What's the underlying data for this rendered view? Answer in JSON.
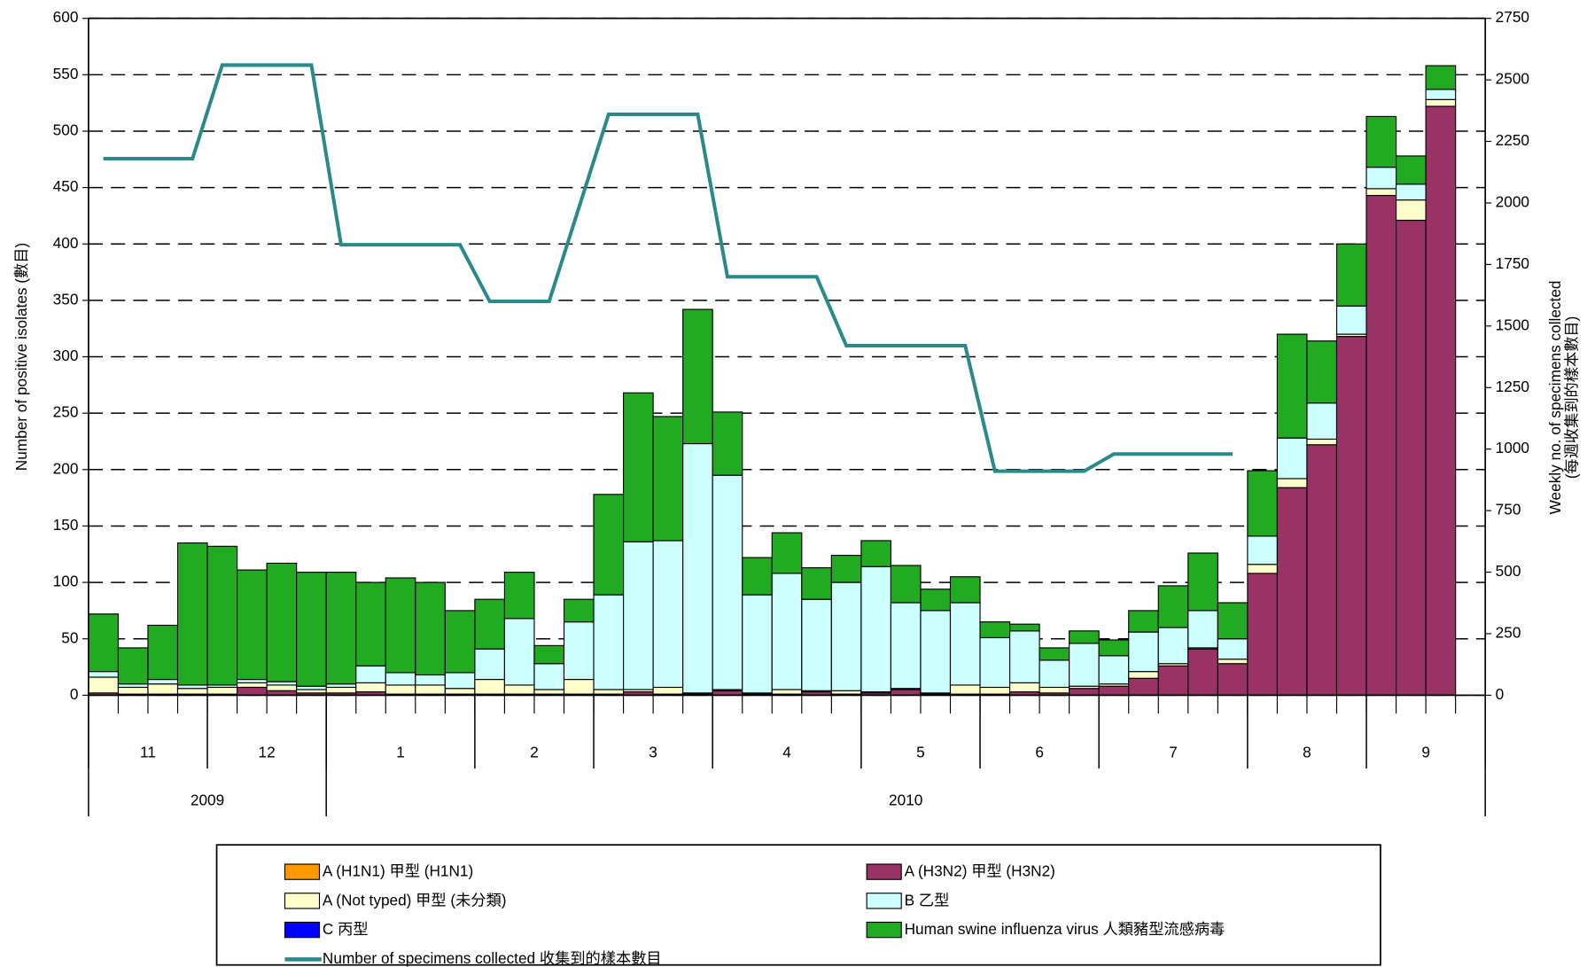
{
  "chart_data": {
    "type": "bar",
    "ylabel": "Number of positive isolates (數目)",
    "y2label": [
      "Weekly no. of specimens collected",
      "(每週收集到的樣本數目)"
    ],
    "ylim": [
      0,
      600
    ],
    "yticks": [
      0,
      50,
      100,
      150,
      200,
      250,
      300,
      350,
      400,
      450,
      500,
      550,
      600
    ],
    "y2lim": [
      0,
      2750
    ],
    "y2ticks": [
      0,
      250,
      500,
      750,
      1000,
      1250,
      1500,
      1750,
      2000,
      2250,
      2500,
      2750
    ],
    "grid": true,
    "months": [
      "11",
      "11",
      "11",
      "11",
      "12",
      "12",
      "12",
      "12",
      "1",
      "1",
      "1",
      "1",
      "1",
      "2",
      "2",
      "2",
      "2",
      "3",
      "3",
      "3",
      "3",
      "4",
      "4",
      "4",
      "4",
      "4",
      "5",
      "5",
      "5",
      "5",
      "6",
      "6",
      "6",
      "6",
      "7",
      "7",
      "7",
      "7",
      "7",
      "8",
      "8",
      "8",
      "8",
      "9",
      "9",
      "9",
      "9"
    ],
    "years": [
      "2009",
      "2009",
      "2009",
      "2009",
      "2009",
      "2009",
      "2009",
      "2009",
      "2010",
      "2010",
      "2010",
      "2010",
      "2010",
      "2010",
      "2010",
      "2010",
      "2010",
      "2010",
      "2010",
      "2010",
      "2010",
      "2010",
      "2010",
      "2010",
      "2010",
      "2010",
      "2010",
      "2010",
      "2010",
      "2010",
      "2010",
      "2010",
      "2010",
      "2010",
      "2010",
      "2010",
      "2010",
      "2010",
      "2010",
      "2010",
      "2010",
      "2010",
      "2010",
      "2010",
      "2010",
      "2010",
      "2010"
    ],
    "series": [
      {
        "name": "A (H1N1) 甲型 (H1N1)",
        "color": "#ff9900",
        "values": [
          0,
          0,
          0,
          0,
          0,
          0,
          0,
          0,
          0,
          0,
          0,
          0,
          0,
          0,
          0,
          0,
          0,
          0,
          0,
          0,
          0,
          0,
          0,
          0,
          0,
          0,
          0,
          0,
          0,
          0,
          0,
          0,
          0,
          0,
          0,
          0,
          0,
          0,
          0,
          0,
          0,
          0,
          0,
          0,
          0,
          0,
          null
        ]
      },
      {
        "name": "A (H3N2) 甲型 (H3N2)",
        "color": "#993366",
        "values": [
          2,
          1,
          1,
          1,
          1,
          7,
          4,
          2,
          2,
          3,
          1,
          1,
          1,
          1,
          1,
          1,
          1,
          1,
          3,
          1,
          1,
          4,
          1,
          1,
          3,
          1,
          2,
          5,
          1,
          1,
          1,
          3,
          2,
          6,
          8,
          15,
          26,
          41,
          28,
          108,
          184,
          222,
          318,
          443,
          421,
          522,
          null
        ]
      },
      {
        "name": "A (Not typed) 甲型 (未分類)",
        "color": "#ffffcc",
        "values": [
          14,
          6,
          9,
          5,
          6,
          4,
          5,
          3,
          5,
          8,
          8,
          8,
          5,
          13,
          8,
          4,
          13,
          4,
          2,
          6,
          1,
          1,
          1,
          4,
          1,
          3,
          1,
          1,
          1,
          8,
          6,
          8,
          5,
          2,
          2,
          6,
          2,
          1,
          4,
          8,
          8,
          5,
          2,
          6,
          18,
          6,
          null
        ]
      },
      {
        "name": "B 乙型",
        "color": "#ccffff",
        "values": [
          5,
          3,
          4,
          3,
          2,
          3,
          3,
          3,
          3,
          15,
          11,
          9,
          14,
          27,
          59,
          23,
          51,
          84,
          131,
          130,
          221,
          190,
          87,
          103,
          81,
          96,
          111,
          76,
          73,
          73,
          44,
          46,
          24,
          38,
          25,
          35,
          32,
          33,
          18,
          25,
          36,
          32,
          25,
          19,
          14,
          9,
          null
        ]
      },
      {
        "name": "C 丙型",
        "color": "#0000ff",
        "values": [
          0,
          0,
          0,
          0,
          0,
          0,
          0,
          0,
          0,
          0,
          0,
          0,
          0,
          0,
          0,
          0,
          0,
          0,
          0,
          0,
          0,
          0,
          0,
          0,
          0,
          0,
          0,
          0,
          0,
          0,
          0,
          0,
          0,
          0,
          0,
          0,
          0,
          0,
          0,
          0,
          0,
          0,
          0,
          0,
          0,
          0,
          null
        ]
      },
      {
        "name": "Human swine influenza virus 人類豬型流感病毒",
        "color": "#22aa22",
        "values": [
          51,
          32,
          48,
          126,
          123,
          97,
          105,
          101,
          99,
          74,
          84,
          82,
          55,
          44,
          41,
          16,
          20,
          89,
          132,
          110,
          119,
          56,
          33,
          36,
          28,
          24,
          23,
          33,
          19,
          23,
          14,
          6,
          11,
          11,
          14,
          19,
          37,
          51,
          32,
          58,
          92,
          55,
          55,
          45,
          25,
          21,
          null
        ]
      },
      {
        "name": "Number of specimens collected 收集到的樣本數目",
        "type": "line",
        "axis": "y2",
        "color": "#2a8a8a",
        "values": [
          2180,
          2180,
          2180,
          2180,
          2560,
          2560,
          2560,
          2560,
          1830,
          1830,
          1830,
          1830,
          1830,
          1600,
          1600,
          1600,
          1980,
          2360,
          2360,
          2360,
          2360,
          1700,
          1700,
          1700,
          1700,
          1420,
          1420,
          1420,
          1420,
          1420,
          910,
          910,
          910,
          910,
          980,
          980,
          980,
          980,
          980,
          null,
          null,
          null,
          null,
          null,
          null,
          null,
          null
        ]
      }
    ]
  }
}
